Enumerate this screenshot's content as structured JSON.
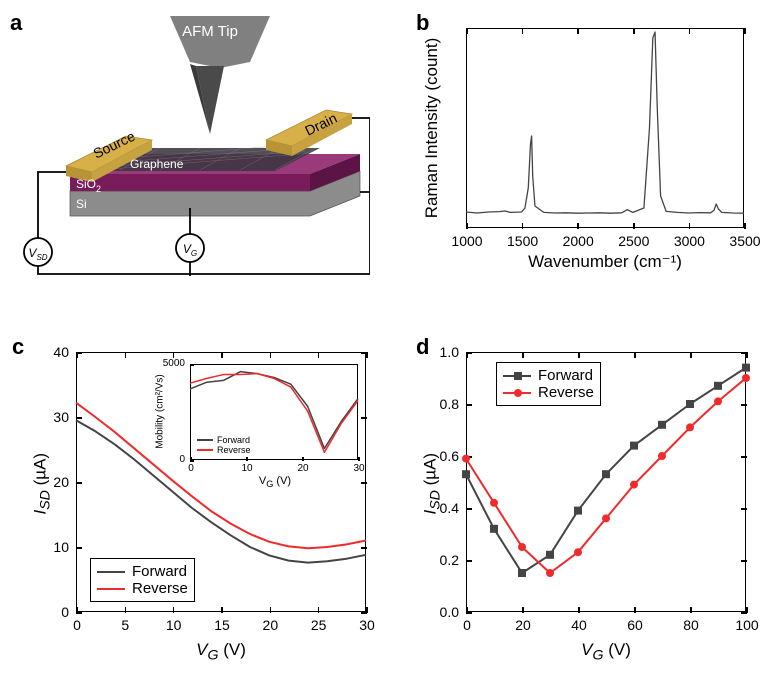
{
  "panel_a": {
    "label": "a",
    "afm_tip": "AFM Tip",
    "source": "Source",
    "drain": "Drain",
    "graphene": "Graphene",
    "sio2": "SiO",
    "sio2_sub": "2",
    "si": "Si",
    "vsd": "V",
    "vsd_sub": "SD",
    "vg": "V",
    "vg_sub": "G",
    "colors": {
      "gold": "#d8b048",
      "sio2": "#7a1b5c",
      "si": "#8c8c8c",
      "tip_body": "#808080",
      "tip": "#4a4a4a",
      "graphene": "#3a3540"
    }
  },
  "panel_b": {
    "label": "b",
    "type": "line",
    "xlabel": "Wavenumber (cm⁻¹)",
    "ylabel": "Raman Intensity (count)",
    "xlim": [
      1000,
      3500
    ],
    "xtick_step": 500,
    "ylim": [
      0,
      1.0
    ],
    "series": [
      {
        "name": "raman",
        "color": "#444444",
        "line_width": 1.3,
        "x": [
          1000,
          1100,
          1200,
          1300,
          1350,
          1400,
          1500,
          1530,
          1560,
          1580,
          1590,
          1600,
          1620,
          1700,
          1800,
          1900,
          2000,
          2100,
          2200,
          2300,
          2400,
          2430,
          2450,
          2500,
          2600,
          2650,
          2680,
          2700,
          2720,
          2750,
          2800,
          2900,
          3000,
          3100,
          3200,
          3230,
          3250,
          3270,
          3300,
          3400,
          3500
        ],
        "y": [
          0.08,
          0.075,
          0.08,
          0.082,
          0.085,
          0.078,
          0.08,
          0.1,
          0.2,
          0.42,
          0.46,
          0.26,
          0.11,
          0.078,
          0.075,
          0.076,
          0.074,
          0.075,
          0.076,
          0.074,
          0.076,
          0.085,
          0.092,
          0.078,
          0.1,
          0.5,
          0.95,
          0.98,
          0.6,
          0.16,
          0.083,
          0.078,
          0.075,
          0.077,
          0.076,
          0.088,
          0.12,
          0.095,
          0.078,
          0.075,
          0.074
        ]
      }
    ]
  },
  "panel_c": {
    "label": "c",
    "type": "line",
    "xlabel": "V_G (V)",
    "xlabel_html": "<i>V<sub>G</sub></i> (V)",
    "ylabel": "I_SD (µA)",
    "ylabel_html": "<i>I<sub>SD</sub></i> (µA)",
    "xlim": [
      0,
      30
    ],
    "xtick_step": 5,
    "ylim": [
      0,
      40
    ],
    "ytick_step": 10,
    "legend_position": "bottom-left",
    "series": [
      {
        "name": "Forward",
        "color": "#444444",
        "line_width": 2.0,
        "x": [
          0,
          2,
          4,
          6,
          8,
          10,
          12,
          14,
          16,
          18,
          20,
          22,
          24,
          26,
          28,
          30
        ],
        "y": [
          29.5,
          27.8,
          25.8,
          23.5,
          21.0,
          18.5,
          16.0,
          13.8,
          11.8,
          10.0,
          8.7,
          7.9,
          7.6,
          7.8,
          8.2,
          8.8
        ]
      },
      {
        "name": "Reverse",
        "color": "#ef2b2b",
        "line_width": 2.0,
        "x": [
          0,
          2,
          4,
          6,
          8,
          10,
          12,
          14,
          16,
          18,
          20,
          22,
          24,
          26,
          28,
          30
        ],
        "y": [
          32.2,
          30.0,
          27.7,
          25.2,
          22.7,
          20.2,
          17.8,
          15.5,
          13.6,
          12.0,
          10.8,
          10.1,
          9.8,
          10.0,
          10.4,
          11.0
        ]
      }
    ],
    "inset": {
      "xlabel_html": "V<sub>G</sub> (V)",
      "ylabel_html": "Mobility (cm²/Vs)",
      "xlim": [
        0,
        30
      ],
      "xtick_step": 10,
      "label_fontsize": 10,
      "ylim": [
        0,
        5000
      ],
      "ytick_step": 5000,
      "series": [
        {
          "name": "Forward",
          "color": "#444444",
          "line_width": 1.5,
          "x": [
            0,
            3,
            6,
            9,
            12,
            15,
            18,
            21,
            24,
            27,
            30
          ],
          "y": [
            3700,
            4050,
            4150,
            4600,
            4500,
            4300,
            3950,
            2800,
            600,
            2000,
            3200
          ]
        },
        {
          "name": "Reverse",
          "color": "#ef2b2b",
          "line_width": 1.5,
          "x": [
            0,
            3,
            6,
            9,
            12,
            15,
            18,
            21,
            24,
            27,
            30
          ],
          "y": [
            4000,
            4250,
            4450,
            4450,
            4500,
            4250,
            3800,
            2550,
            400,
            1900,
            3100
          ]
        }
      ]
    }
  },
  "panel_d": {
    "label": "d",
    "type": "line-marker",
    "xlabel_html": "<i>V<sub>G</sub></i> (V)",
    "ylabel_html": "<i>I<sub>SD</sub></i> (µA)",
    "xlim": [
      0,
      100
    ],
    "xtick_step": 20,
    "ylim": [
      0,
      1.0
    ],
    "ytick_step": 0.2,
    "legend_position": "top-left",
    "series": [
      {
        "name": "Forward",
        "color": "#444444",
        "marker": "square",
        "line_width": 2.0,
        "x": [
          0,
          10,
          20,
          30,
          40,
          50,
          60,
          70,
          80,
          90,
          100
        ],
        "y": [
          0.53,
          0.32,
          0.15,
          0.22,
          0.39,
          0.53,
          0.64,
          0.72,
          0.8,
          0.87,
          0.94
        ]
      },
      {
        "name": "Reverse",
        "color": "#ef2b2b",
        "marker": "circle",
        "line_width": 2.0,
        "x": [
          0,
          10,
          20,
          30,
          40,
          50,
          60,
          70,
          80,
          90,
          100
        ],
        "y": [
          0.59,
          0.42,
          0.25,
          0.15,
          0.23,
          0.36,
          0.49,
          0.6,
          0.71,
          0.81,
          0.9
        ]
      }
    ]
  }
}
